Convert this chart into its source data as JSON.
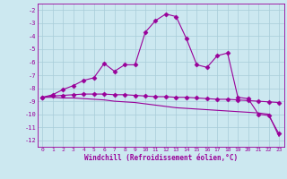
{
  "xlabel": "Windchill (Refroidissement éolien,°C)",
  "background_color": "#cce8f0",
  "grid_color": "#a8ccd8",
  "line_color": "#990099",
  "x_data": [
    0,
    1,
    2,
    3,
    4,
    5,
    6,
    7,
    8,
    9,
    10,
    11,
    12,
    13,
    14,
    15,
    16,
    17,
    18,
    19,
    20,
    21,
    22,
    23
  ],
  "y_line1": [
    -8.7,
    -8.5,
    -8.1,
    -7.8,
    -7.4,
    -7.2,
    -6.1,
    -6.7,
    -6.2,
    -6.2,
    -3.7,
    -2.8,
    -2.3,
    -2.5,
    -4.2,
    -6.2,
    -6.4,
    -5.5,
    -5.3,
    -8.7,
    -8.8,
    -10.0,
    -10.1,
    -11.5
  ],
  "y_line2": [
    -8.7,
    -8.6,
    -8.55,
    -8.5,
    -8.45,
    -8.45,
    -8.45,
    -8.5,
    -8.5,
    -8.55,
    -8.6,
    -8.65,
    -8.65,
    -8.7,
    -8.7,
    -8.75,
    -8.8,
    -8.85,
    -8.85,
    -8.9,
    -8.95,
    -9.0,
    -9.05,
    -9.1
  ],
  "y_line3": [
    -8.7,
    -8.7,
    -8.75,
    -8.75,
    -8.8,
    -8.85,
    -8.9,
    -9.0,
    -9.05,
    -9.1,
    -9.2,
    -9.3,
    -9.4,
    -9.5,
    -9.55,
    -9.6,
    -9.65,
    -9.7,
    -9.75,
    -9.8,
    -9.85,
    -9.9,
    -10.0,
    -11.7
  ],
  "ylim": [
    -12.5,
    -1.5
  ],
  "xlim": [
    -0.5,
    23.5
  ],
  "yticks": [
    -12,
    -11,
    -10,
    -9,
    -8,
    -7,
    -6,
    -5,
    -4,
    -3,
    -2
  ],
  "xticks": [
    0,
    1,
    2,
    3,
    4,
    5,
    6,
    7,
    8,
    9,
    10,
    11,
    12,
    13,
    14,
    15,
    16,
    17,
    18,
    19,
    20,
    21,
    22,
    23
  ]
}
